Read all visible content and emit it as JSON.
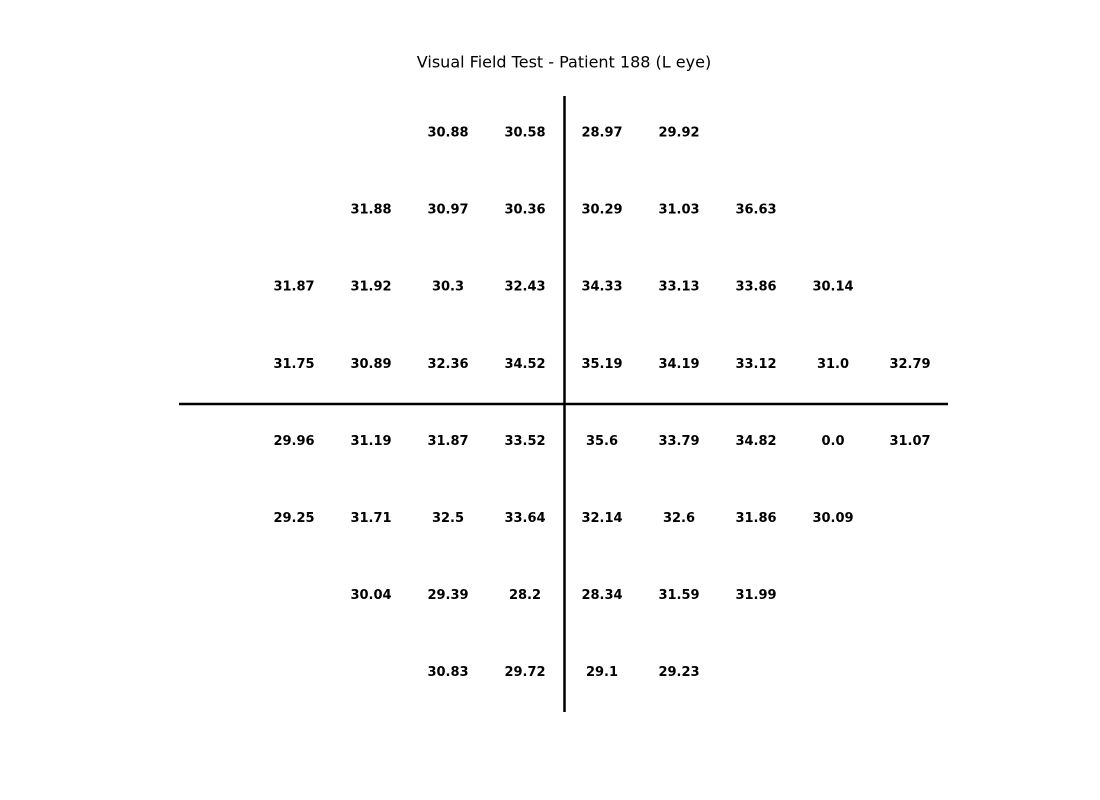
{
  "chart_data": {
    "type": "table",
    "title": "Visual Field Test - Patient 188 (L eye)",
    "grid": false,
    "columns": 9,
    "rows": [
      [
        null,
        null,
        30.88,
        30.58,
        28.97,
        29.92,
        null,
        null,
        null
      ],
      [
        null,
        31.88,
        30.97,
        30.36,
        30.29,
        31.03,
        36.63,
        null,
        null
      ],
      [
        31.87,
        31.92,
        30.3,
        32.43,
        34.33,
        33.13,
        33.86,
        30.14,
        null
      ],
      [
        31.75,
        30.89,
        32.36,
        34.52,
        35.19,
        34.19,
        33.12,
        31.0,
        32.79
      ],
      [
        29.96,
        31.19,
        31.87,
        33.52,
        35.6,
        33.79,
        34.82,
        0.0,
        31.07
      ],
      [
        29.25,
        31.71,
        32.5,
        33.64,
        32.14,
        32.6,
        31.86,
        30.09,
        null
      ],
      [
        null,
        30.04,
        29.39,
        28.2,
        28.34,
        31.59,
        31.99,
        null,
        null
      ],
      [
        null,
        null,
        30.83,
        29.72,
        29.1,
        29.23,
        null,
        null,
        null
      ]
    ],
    "labels": [
      [
        null,
        null,
        "30.88",
        "30.58",
        "28.97",
        "29.92",
        null,
        null,
        null
      ],
      [
        null,
        "31.88",
        "30.97",
        "30.36",
        "30.29",
        "31.03",
        "36.63",
        null,
        null
      ],
      [
        "31.87",
        "31.92",
        "30.3",
        "32.43",
        "34.33",
        "33.13",
        "33.86",
        "30.14",
        null
      ],
      [
        "31.75",
        "30.89",
        "32.36",
        "34.52",
        "35.19",
        "34.19",
        "33.12",
        "31.0",
        "32.79"
      ],
      [
        "29.96",
        "31.19",
        "31.87",
        "33.52",
        "35.6",
        "33.79",
        "34.82",
        "0.0",
        "31.07"
      ],
      [
        "29.25",
        "31.71",
        "32.5",
        "33.64",
        "32.14",
        "32.6",
        "31.86",
        "30.09",
        null
      ],
      [
        null,
        "30.04",
        "29.39",
        "28.2",
        "28.34",
        "31.59",
        "31.99",
        null,
        null
      ],
      [
        null,
        null,
        "30.83",
        "29.72",
        "29.1",
        "29.23",
        null,
        null,
        null
      ]
    ]
  },
  "colors": {
    "background": "#ffffff",
    "text": "#000000",
    "axes": "#000000"
  }
}
